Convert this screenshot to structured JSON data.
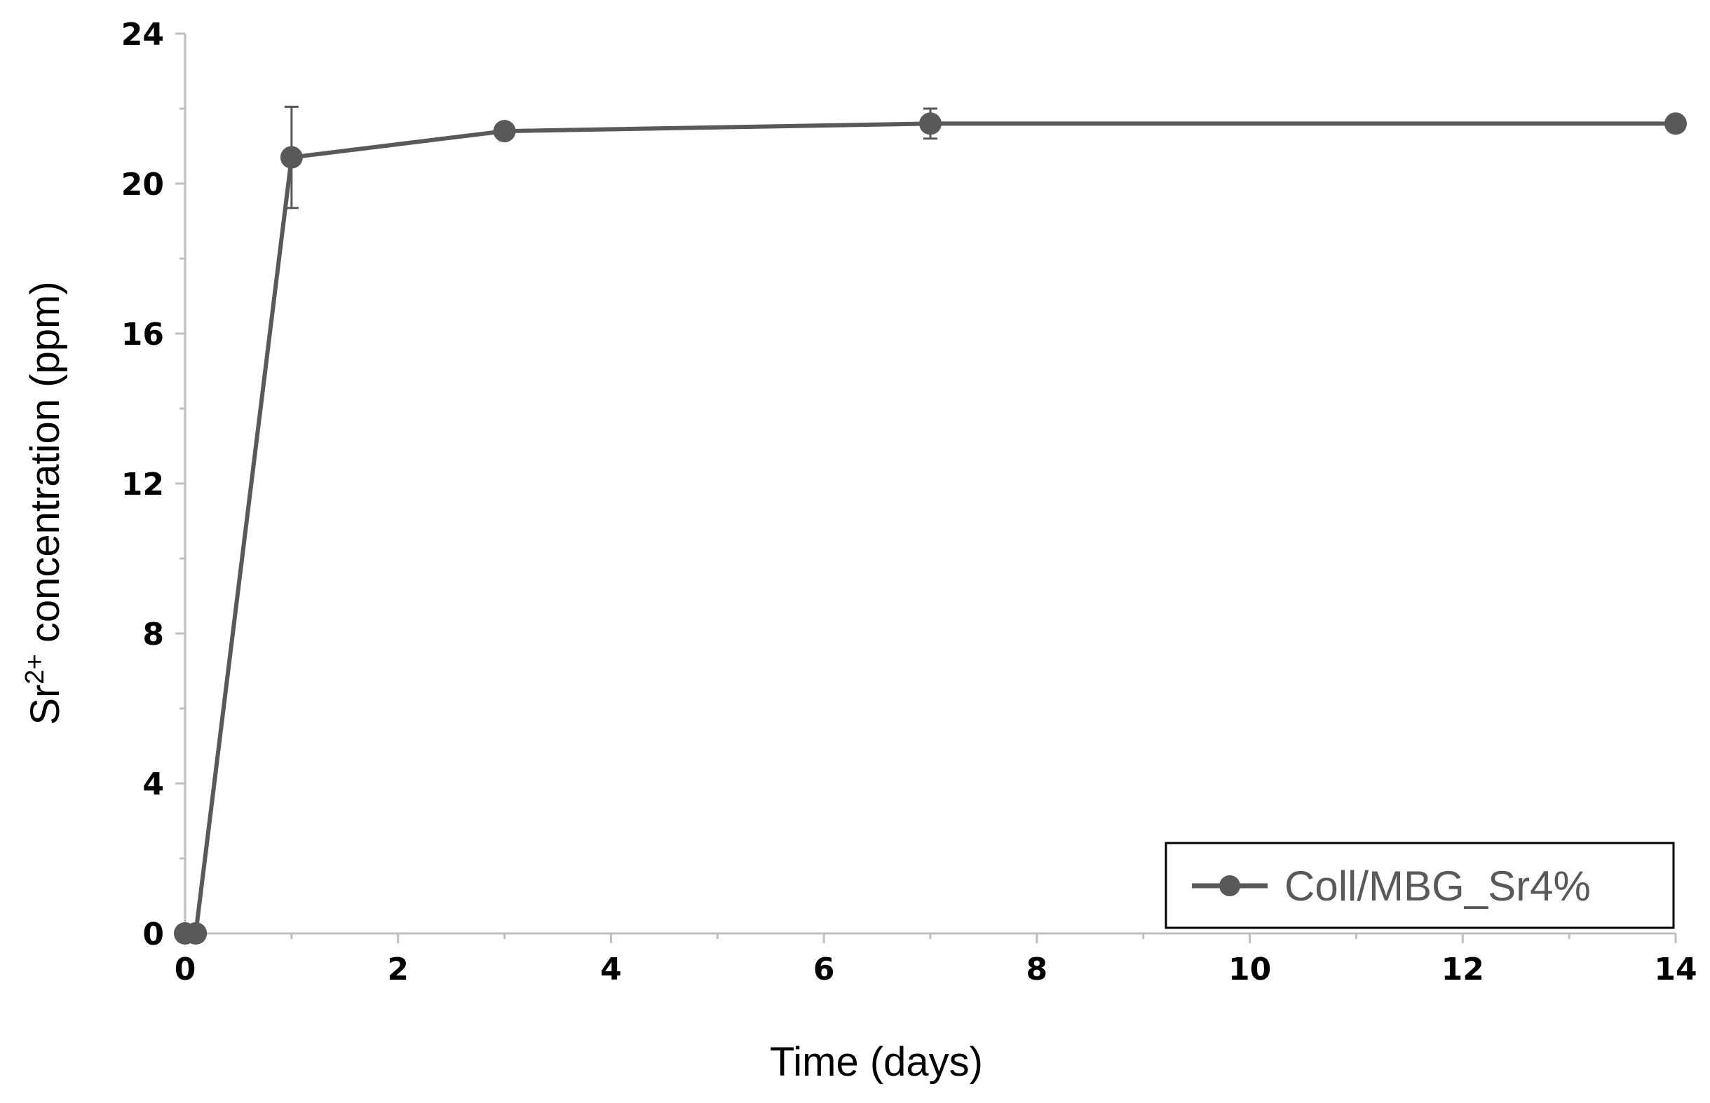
{
  "chart_data": {
    "type": "line",
    "xlabel": "Time (days)",
    "ylabel_main": "Sr",
    "ylabel_sup": "2+",
    "ylabel_rest": " concentration (ppm)",
    "xlim": [
      0,
      14
    ],
    "ylim": [
      0,
      24
    ],
    "x_ticks": [
      0,
      2,
      4,
      6,
      8,
      10,
      12,
      14
    ],
    "y_ticks": [
      0,
      4,
      8,
      12,
      16,
      20,
      24
    ],
    "grid": false,
    "legend_position": "bottom-right",
    "series": [
      {
        "name": "Coll/MBG_Sr4%",
        "color": "#595959",
        "x": [
          0,
          0.1,
          1,
          3,
          7,
          14
        ],
        "y": [
          0,
          0,
          20.7,
          21.4,
          21.6,
          21.6
        ],
        "error": [
          0,
          0,
          1.35,
          0.05,
          0.4,
          0
        ]
      }
    ]
  }
}
